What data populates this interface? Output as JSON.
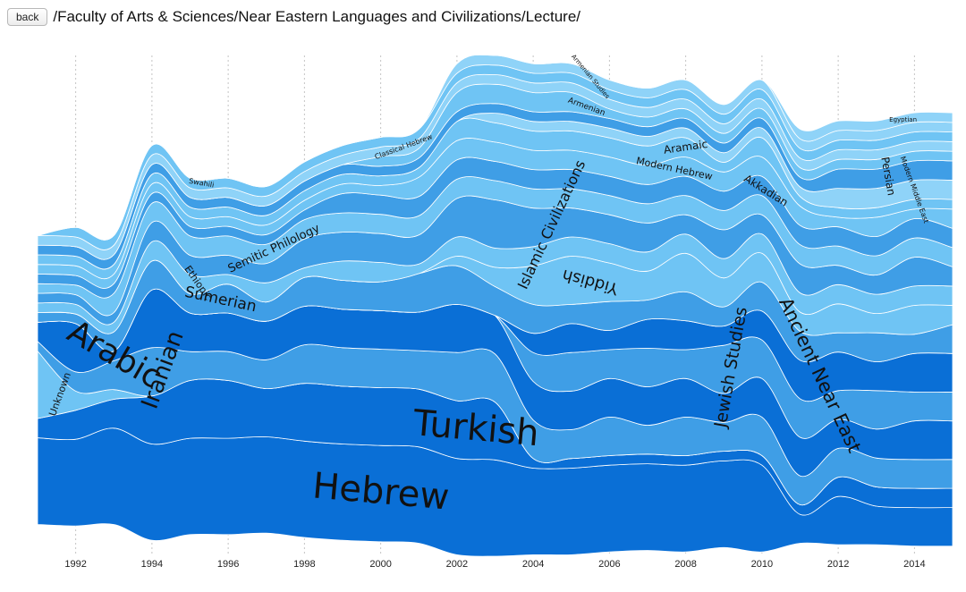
{
  "header": {
    "back_label": "back",
    "breadcrumb": "/Faculty of Arts & Sciences/Near Eastern Languages and Civilizations/Lecture/"
  },
  "chart_data": {
    "type": "area",
    "subtype": "streamgraph",
    "title": "",
    "xlabel": "",
    "ylabel": "",
    "x": [
      1991,
      1992,
      1993,
      1994,
      1995,
      1996,
      1997,
      1998,
      1999,
      2000,
      2001,
      2002,
      2003,
      2004,
      2005,
      2006,
      2007,
      2008,
      2009,
      2010,
      2011,
      2012,
      2013,
      2014,
      2015
    ],
    "x_ticks": [
      "1992",
      "1994",
      "1996",
      "1998",
      "2000",
      "2002",
      "2004",
      "2006",
      "2008",
      "2010",
      "2012",
      "2014"
    ],
    "grid": "vertical dashed",
    "legend": "none (labels drawn on streams)",
    "colors": {
      "dark": "#0a6fd6",
      "medium": "#3f9ee6",
      "light": "#6fc4f4",
      "pale": "#8fd3f8"
    },
    "series": [
      {
        "name": "Hebrew",
        "tone": "dark",
        "values": [
          9,
          9,
          10,
          10,
          10,
          10,
          10,
          10,
          10,
          10,
          10,
          10,
          10,
          9,
          9,
          9,
          9,
          9,
          9,
          9,
          3,
          5,
          4,
          4,
          4
        ]
      },
      {
        "name": "Turkish",
        "tone": "dark",
        "values": [
          2,
          3,
          3,
          5,
          6,
          6,
          5,
          6,
          6,
          6,
          6,
          6,
          6,
          1,
          1,
          1,
          1,
          1,
          1,
          1,
          1,
          2,
          2,
          2,
          2
        ]
      },
      {
        "name": "Unknown",
        "tone": "light",
        "values": [
          7,
          2,
          1,
          0,
          0,
          0,
          0,
          0,
          0,
          0,
          0,
          0,
          0,
          0,
          0,
          0,
          0,
          0,
          0,
          0,
          0,
          0,
          0,
          0,
          0
        ]
      },
      {
        "name": "Iranian",
        "tone": "medium",
        "values": [
          1,
          2,
          3,
          5,
          3,
          3,
          3,
          4,
          4,
          4,
          4,
          5,
          5,
          4,
          3,
          4,
          3,
          4,
          3,
          4,
          3,
          3,
          3,
          3,
          3
        ]
      },
      {
        "name": "Arabic",
        "tone": "dark",
        "values": [
          2,
          5,
          1,
          6,
          4,
          4,
          4,
          4,
          4,
          4,
          4,
          5,
          4,
          4,
          4,
          4,
          4,
          4,
          3,
          4,
          4,
          3,
          3,
          4,
          4
        ]
      },
      {
        "name": "Jewish Studies",
        "tone": "medium",
        "values": [
          0,
          0,
          0,
          0,
          0,
          0,
          0,
          0,
          0,
          0,
          0,
          0,
          0,
          3,
          4,
          3,
          4,
          3,
          5,
          4,
          4,
          3,
          4,
          3,
          3
        ]
      },
      {
        "name": "Ancient Near East",
        "tone": "dark",
        "values": [
          0,
          0,
          0,
          0,
          0,
          0,
          0,
          0,
          0,
          0,
          0,
          0,
          0,
          2,
          3,
          2,
          3,
          3,
          2,
          3,
          4,
          4,
          3,
          4,
          4
        ]
      },
      {
        "name": "Sumerian",
        "tone": "medium",
        "values": [
          1,
          1,
          2,
          3,
          2,
          3,
          2,
          3,
          3,
          3,
          4,
          4,
          3,
          3,
          2,
          3,
          2,
          3,
          2,
          3,
          3,
          2,
          3,
          2,
          3
        ]
      },
      {
        "name": "Yiddish",
        "tone": "light",
        "values": [
          0,
          0,
          0,
          0,
          0,
          0,
          0,
          0,
          0,
          0,
          0,
          1,
          2,
          4,
          5,
          4,
          3,
          4,
          3,
          3,
          2,
          3,
          2,
          3,
          2
        ]
      },
      {
        "name": "Ethiopic",
        "tone": "light",
        "values": [
          1,
          1,
          1,
          2,
          2,
          1,
          2,
          1,
          2,
          2,
          1,
          2,
          2,
          2,
          2,
          2,
          2,
          2,
          2,
          2,
          2,
          2,
          2,
          2,
          2
        ]
      },
      {
        "name": "Islamic Civilizations",
        "tone": "medium",
        "values": [
          1,
          1,
          1,
          2,
          2,
          2,
          2,
          3,
          3,
          3,
          3,
          4,
          5,
          4,
          3,
          3,
          3,
          2,
          3,
          2,
          3,
          2,
          2,
          3,
          2
        ]
      },
      {
        "name": "Semitic Philology",
        "tone": "light",
        "values": [
          1,
          1,
          2,
          2,
          2,
          2,
          2,
          2,
          2,
          2,
          2,
          2,
          2,
          2,
          2,
          2,
          2,
          2,
          2,
          2,
          2,
          2,
          2,
          2,
          2
        ]
      },
      {
        "name": "Akkadian",
        "tone": "medium",
        "values": [
          1,
          1,
          1,
          1,
          1,
          1,
          1,
          1,
          2,
          2,
          2,
          2,
          2,
          2,
          2,
          2,
          2,
          2,
          2,
          2,
          2,
          2,
          2,
          2,
          2
        ]
      },
      {
        "name": "Modern Hebrew",
        "tone": "light",
        "values": [
          1,
          1,
          1,
          1,
          1,
          1,
          1,
          1,
          1,
          1,
          2,
          2,
          2,
          2,
          2,
          2,
          2,
          2,
          2,
          2,
          2,
          1,
          2,
          1,
          2
        ]
      },
      {
        "name": "Aramaic",
        "tone": "light",
        "values": [
          1,
          1,
          1,
          1,
          1,
          1,
          1,
          1,
          1,
          1,
          1,
          2,
          2,
          2,
          2,
          2,
          2,
          2,
          1,
          2,
          1,
          1,
          1,
          1,
          1
        ]
      },
      {
        "name": "Modern Middle East",
        "tone": "pale",
        "values": [
          0,
          0,
          0,
          0,
          0,
          0,
          0,
          0,
          0,
          0,
          0,
          0,
          1,
          1,
          1,
          1,
          1,
          1,
          1,
          1,
          1,
          2,
          2,
          2,
          2
        ]
      },
      {
        "name": "Persian",
        "tone": "medium",
        "values": [
          1,
          1,
          1,
          1,
          1,
          1,
          1,
          1,
          1,
          1,
          1,
          1,
          1,
          1,
          1,
          1,
          1,
          1,
          1,
          1,
          1,
          2,
          2,
          2,
          2
        ]
      },
      {
        "name": "Armenian",
        "tone": "light",
        "values": [
          0,
          0,
          0,
          0,
          0,
          0,
          0,
          0,
          0,
          1,
          1,
          2,
          2,
          2,
          2,
          1,
          1,
          1,
          1,
          1,
          1,
          1,
          1,
          1,
          1
        ]
      },
      {
        "name": "Classical Hebrew",
        "tone": "pale",
        "values": [
          1,
          1,
          1,
          1,
          1,
          1,
          1,
          1,
          1,
          1,
          1,
          1,
          1,
          1,
          1,
          1,
          1,
          1,
          1,
          1,
          1,
          1,
          1,
          1,
          1
        ]
      },
      {
        "name": "Swahili",
        "tone": "light",
        "values": [
          0,
          1,
          1,
          1,
          1,
          1,
          1,
          1,
          1,
          1,
          1,
          1,
          1,
          1,
          1,
          1,
          1,
          1,
          1,
          1,
          1,
          1,
          1,
          1,
          1
        ]
      },
      {
        "name": "Armenian Studies",
        "tone": "pale",
        "values": [
          0,
          0,
          0,
          0,
          0,
          0,
          0,
          0,
          0,
          0,
          0,
          1,
          1,
          1,
          1,
          1,
          1,
          1,
          1,
          1,
          1,
          1,
          1,
          1,
          1
        ]
      },
      {
        "name": "Egyptian",
        "tone": "pale",
        "values": [
          0,
          0,
          0,
          0,
          0,
          0,
          0,
          0,
          0,
          0,
          0,
          0,
          0,
          0,
          0,
          0,
          0,
          0,
          0,
          0,
          1,
          1,
          1,
          1,
          1
        ]
      }
    ],
    "labels": [
      {
        "text": "Hebrew",
        "series": "Hebrew",
        "year": 2000.0,
        "value_in_band": 0.5,
        "size": 40,
        "rotate": 5
      },
      {
        "text": "Turkish",
        "series": "Turkish",
        "year": 2002.5,
        "value_in_band": 0.5,
        "size": 40,
        "rotate": 5
      },
      {
        "text": "Arabic",
        "series": "Arabic",
        "year": 1993.0,
        "value_in_band": 0.5,
        "size": 36,
        "rotate": 30
      },
      {
        "text": "Iranian",
        "series": "Iranian",
        "year": 1994.3,
        "value_in_band": 0.5,
        "size": 26,
        "rotate": -70
      },
      {
        "text": "Unknown",
        "series": "Unknown",
        "year": 1991.6,
        "value_in_band": 0.5,
        "size": 11,
        "rotate": -70
      },
      {
        "text": "Sumerian",
        "series": "Sumerian",
        "year": 1995.8,
        "value_in_band": 0.5,
        "size": 17,
        "rotate": 12
      },
      {
        "text": "Ethiopic",
        "series": "Ethiopic",
        "year": 1995.2,
        "value_in_band": 0.5,
        "size": 11,
        "rotate": 55
      },
      {
        "text": "Semitic Philology",
        "series": "Semitic Philology",
        "year": 1997.2,
        "value_in_band": 0.5,
        "size": 13,
        "rotate": -25
      },
      {
        "text": "Swahili",
        "series": "Swahili",
        "year": 1995.3,
        "value_in_band": 0.5,
        "size": 8,
        "rotate": 10
      },
      {
        "text": "Classical Hebrew",
        "series": "Classical Hebrew",
        "year": 2000.6,
        "value_in_band": 0.5,
        "size": 8,
        "rotate": -20
      },
      {
        "text": "Islamic Civilizations",
        "series": "Islamic Civilizations",
        "year": 2004.5,
        "value_in_band": 0.5,
        "size": 16,
        "rotate": -65
      },
      {
        "text": "Yiddish",
        "series": "Yiddish",
        "year": 2005.5,
        "value_in_band": 0.5,
        "size": 18,
        "rotate": 195
      },
      {
        "text": "Armenian Studies",
        "series": "Armenian Studies",
        "year": 2005.5,
        "value_in_band": 0.5,
        "size": 7,
        "rotate": 50
      },
      {
        "text": "Armenian",
        "series": "Armenian",
        "year": 2005.4,
        "value_in_band": 0.5,
        "size": 9,
        "rotate": 20
      },
      {
        "text": "Aramaic",
        "series": "Aramaic",
        "year": 2008.0,
        "value_in_band": 0.5,
        "size": 12,
        "rotate": -8
      },
      {
        "text": "Modern Hebrew",
        "series": "Modern Hebrew",
        "year": 2007.7,
        "value_in_band": 0.5,
        "size": 11,
        "rotate": 12
      },
      {
        "text": "Akkadian",
        "series": "Akkadian",
        "year": 2010.1,
        "value_in_band": 0.5,
        "size": 12,
        "rotate": 32
      },
      {
        "text": "Jewish Studies",
        "series": "Jewish Studies",
        "year": 2009.2,
        "value_in_band": 0.5,
        "size": 19,
        "rotate": -80
      },
      {
        "text": "Ancient Near East",
        "series": "Ancient Near East",
        "year": 2011.5,
        "value_in_band": 0.5,
        "size": 21,
        "rotate": 65
      },
      {
        "text": "Persian",
        "series": "Persian",
        "year": 2013.3,
        "value_in_band": 0.5,
        "size": 12,
        "rotate": 80
      },
      {
        "text": "Egyptian",
        "series": "Egyptian",
        "year": 2013.7,
        "value_in_band": 0.5,
        "size": 7,
        "rotate": 0
      },
      {
        "text": "Modern Middle East",
        "series": "Modern Middle East",
        "year": 2014.0,
        "value_in_band": 0.5,
        "size": 8,
        "rotate": 70
      }
    ]
  }
}
